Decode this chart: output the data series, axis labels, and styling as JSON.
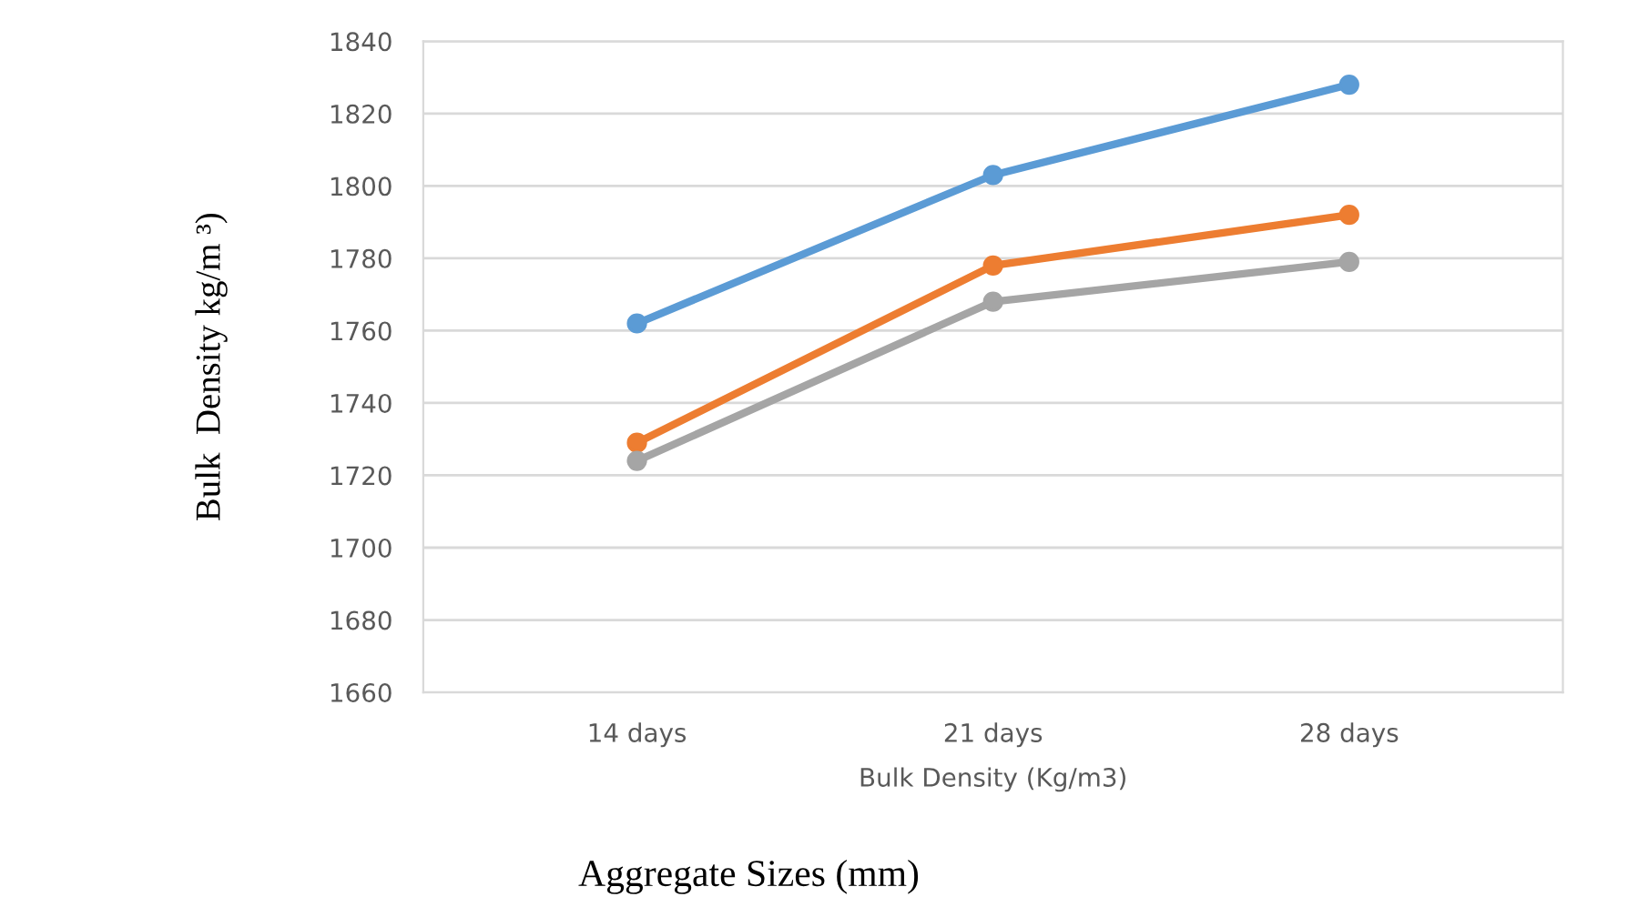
{
  "chart_data": {
    "type": "line",
    "xlabel": "Bulk Density (Kg/m3)",
    "ylabel": "Bulk  Density kg/m ³)",
    "annotations": [
      "Aggregate Sizes (mm)"
    ],
    "categories": [
      "14 days",
      "21 days",
      "28 days"
    ],
    "series": [
      {
        "color": "#5b9bd5",
        "values": [
          1762,
          1803,
          1828
        ]
      },
      {
        "color": "#ed7d31",
        "values": [
          1729,
          1778,
          1792
        ]
      },
      {
        "color": "#a5a5a5",
        "values": [
          1724,
          1768,
          1779
        ]
      }
    ],
    "ylim": [
      1660,
      1840
    ],
    "yticks": [
      1660,
      1680,
      1700,
      1720,
      1740,
      1760,
      1780,
      1800,
      1820,
      1840
    ],
    "grid": "y",
    "marker": "circle",
    "line_style": "solid"
  }
}
